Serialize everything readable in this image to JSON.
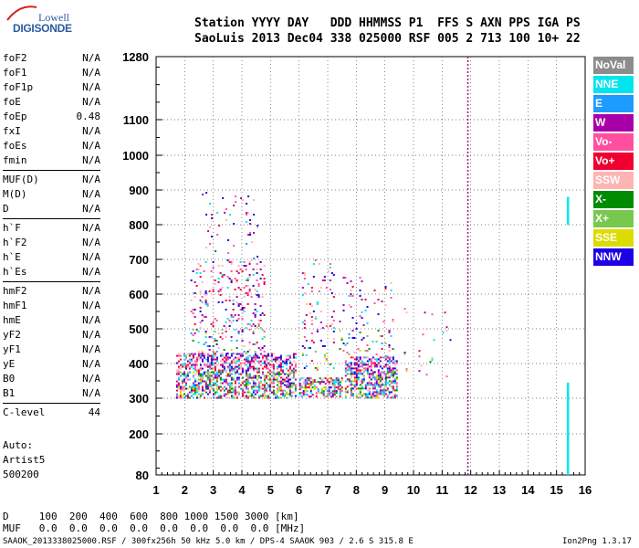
{
  "logo": {
    "line1": "Lowell",
    "line2": "DIGISONDE"
  },
  "header": {
    "labels": "Station YYYY DAY   DDD HHMMSS P1  FFS S AXN PPS IGA PS",
    "values": "SaoLuis 2013 Dec04 338 025000 RSF 005 2 713 100 10+ 22"
  },
  "params": [
    [
      {
        "name": "foF2",
        "value": "N/A"
      },
      {
        "name": "foF1",
        "value": "N/A"
      },
      {
        "name": "foF1p",
        "value": "N/A"
      },
      {
        "name": "foE",
        "value": "N/A"
      },
      {
        "name": "foEp",
        "value": "0.48"
      },
      {
        "name": "fxI",
        "value": "N/A"
      },
      {
        "name": "foEs",
        "value": "N/A"
      },
      {
        "name": "fmin",
        "value": "N/A"
      }
    ],
    [
      {
        "name": "MUF(D)",
        "value": "N/A"
      },
      {
        "name": "M(D)",
        "value": "N/A"
      },
      {
        "name": "D",
        "value": "N/A"
      }
    ],
    [
      {
        "name": "h`F",
        "value": "N/A"
      },
      {
        "name": "h`F2",
        "value": "N/A"
      },
      {
        "name": "h`E",
        "value": "N/A"
      },
      {
        "name": "h`Es",
        "value": "N/A"
      }
    ],
    [
      {
        "name": "hmF2",
        "value": "N/A"
      },
      {
        "name": "hmF1",
        "value": "N/A"
      },
      {
        "name": "hmE",
        "value": "N/A"
      },
      {
        "name": "yF2",
        "value": "N/A"
      },
      {
        "name": "yF1",
        "value": "N/A"
      },
      {
        "name": "yE",
        "value": "N/A"
      },
      {
        "name": "B0",
        "value": "N/A"
      },
      {
        "name": "B1",
        "value": "N/A"
      }
    ],
    [
      {
        "name": "C-level",
        "value": "44"
      }
    ]
  ],
  "auto": {
    "line1": "Auto:",
    "line2": "Artist5",
    "line3": "500200"
  },
  "bottom": {
    "d_row": "D     100  200  400  600  800 1000 1500 3000 [km]",
    "muf_row": "MUF   0.0  0.0  0.0  0.0  0.0  0.0  0.0  0.0 [MHz]"
  },
  "footer": "SAAOK_2013338025000.RSF / 300fx256h 50 kHz 5.0 km / DPS-4 SAAOK 903 / 2.6 S 315.8 E",
  "version": "Ion2Png 1.3.17",
  "legend": [
    {
      "label": "NoVal",
      "color": "#8c8c8c"
    },
    {
      "label": "NNE",
      "color": "#00e5ee"
    },
    {
      "label": "E",
      "color": "#1e9bff"
    },
    {
      "label": "W",
      "color": "#a800a8"
    },
    {
      "label": "Vo-",
      "color": "#ff50a0"
    },
    {
      "label": "Vo+",
      "color": "#f00030"
    },
    {
      "label": "SSW",
      "color": "#ffb4b4"
    },
    {
      "label": "X-",
      "color": "#008c00"
    },
    {
      "label": "X+",
      "color": "#78c850"
    },
    {
      "label": "SSE",
      "color": "#dcdc00"
    },
    {
      "label": "NNW",
      "color": "#1e00e6"
    }
  ],
  "chart_data": {
    "type": "scatter",
    "xlim": [
      1,
      16
    ],
    "x_ticks": [
      "1",
      "2",
      "3",
      "4",
      "5",
      "6",
      "7",
      "8",
      "9",
      "10",
      "11",
      "12",
      "13",
      "14",
      "15",
      "16"
    ],
    "y_ticks": [
      80,
      200,
      300,
      400,
      500,
      600,
      700,
      800,
      900,
      1000,
      1100,
      1280
    ],
    "y_scale": "nonlinear",
    "grid": true,
    "marker_x": 11.9,
    "echo_regions": [
      {
        "x0": 1.7,
        "x1": 5.9,
        "ylo": 300,
        "yhi": 430,
        "density": 0.55
      },
      {
        "x0": 2.2,
        "x1": 4.8,
        "ylo": 430,
        "yhi": 700,
        "density": 0.12
      },
      {
        "x0": 2.6,
        "x1": 4.6,
        "ylo": 700,
        "yhi": 900,
        "density": 0.03
      },
      {
        "x0": 6.0,
        "x1": 7.5,
        "ylo": 305,
        "yhi": 360,
        "density": 0.55
      },
      {
        "x0": 6.1,
        "x1": 7.2,
        "ylo": 380,
        "yhi": 700,
        "density": 0.08
      },
      {
        "x0": 7.6,
        "x1": 9.4,
        "ylo": 300,
        "yhi": 420,
        "density": 0.55
      },
      {
        "x0": 7.4,
        "x1": 9.3,
        "ylo": 420,
        "yhi": 650,
        "density": 0.06
      },
      {
        "x0": 9.6,
        "x1": 11.3,
        "ylo": 350,
        "yhi": 560,
        "density": 0.015
      }
    ],
    "vertical_traces": [
      {
        "x": 15.4,
        "ylo": 800,
        "yhi": 880,
        "color": "#00e5ee"
      },
      {
        "x": 15.4,
        "ylo": 80,
        "yhi": 345,
        "color": "#00e5ee"
      }
    ]
  }
}
